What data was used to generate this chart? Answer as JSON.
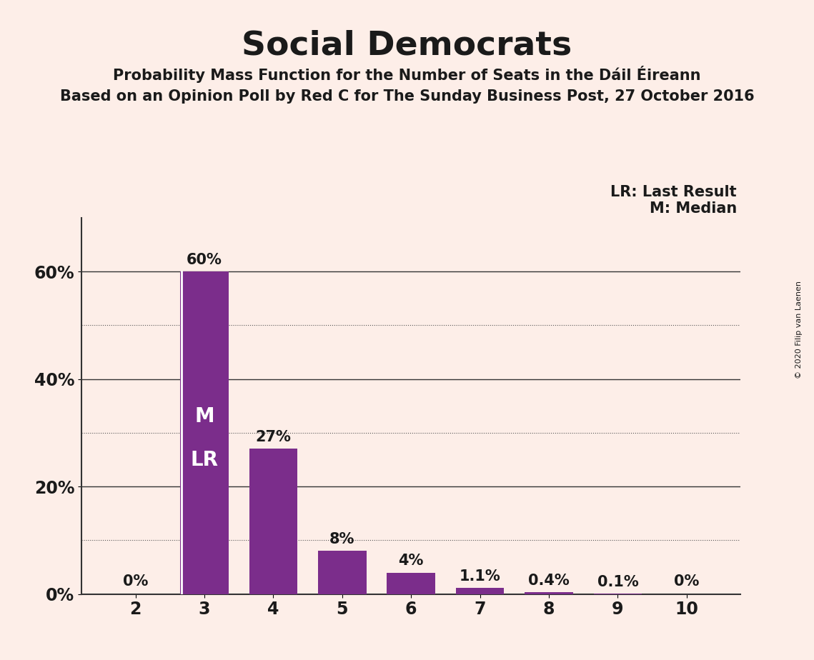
{
  "title": "Social Democrats",
  "subtitle1": "Probability Mass Function for the Number of Seats in the Dáil Éireann",
  "subtitle2": "Based on an Opinion Poll by Red C for The Sunday Business Post, 27 October 2016",
  "copyright": "© 2020 Filip van Laenen",
  "categories": [
    2,
    3,
    4,
    5,
    6,
    7,
    8,
    9,
    10
  ],
  "values": [
    0.0,
    60.0,
    27.0,
    8.0,
    4.0,
    1.1,
    0.4,
    0.1,
    0.0
  ],
  "bar_labels": [
    "0%",
    "60%",
    "27%",
    "8%",
    "4%",
    "1.1%",
    "0.4%",
    "0.1%",
    "0%"
  ],
  "bar_color": "#7B2D8B",
  "background_color": "#FDEEE8",
  "text_color": "#1a1a1a",
  "median_seat": 3,
  "last_result_seat": 3,
  "legend_text1": "LR: Last Result",
  "legend_text2": "M: Median",
  "ylim": [
    0,
    70
  ],
  "yticks": [
    0,
    20,
    40,
    60
  ],
  "ytick_labels": [
    "0%",
    "20%",
    "40%",
    "60%"
  ],
  "grid_major_color": "#333333",
  "grid_minor_color": "#555555",
  "bar_width": 0.7,
  "title_fontsize": 34,
  "subtitle_fontsize": 15,
  "tick_fontsize": 17,
  "label_fontsize": 15,
  "ml_label_fontsize": 20
}
